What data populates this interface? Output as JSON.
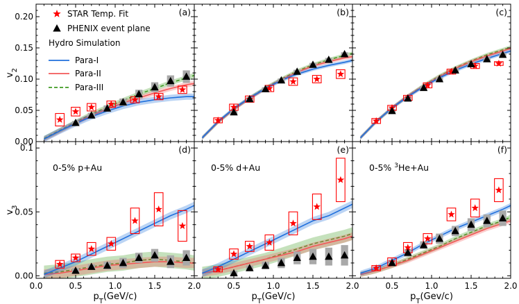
{
  "chart_data": {
    "type": "line",
    "layout": "2 rows x 3 columns, shared x axis",
    "x_axis": {
      "label": "p",
      "label_sub": "T",
      "label_unit": "(GeV/c)",
      "label_unit_last": "(Gev/c)",
      "range": [
        0.0,
        2.0
      ],
      "ticks": [
        0.0,
        0.5,
        1.0,
        1.5,
        2.0
      ],
      "tick_labels": [
        "0.0",
        "0.5",
        "1.0",
        "1.5",
        "2.0"
      ]
    },
    "rows": [
      {
        "name": "v2",
        "ylabel": "v",
        "ylabel_sub": "2",
        "ylim": [
          0.0,
          0.22
        ],
        "ticks": [
          0.0,
          0.05,
          0.1,
          0.15,
          0.2
        ],
        "tick_labels": [
          "0.00",
          "0.05",
          "0.10",
          "0.15",
          "0.20"
        ]
      },
      {
        "name": "v3",
        "ylabel": "v",
        "ylabel_sub": "3",
        "ylim": [
          -0.002,
          0.105
        ],
        "ticks": [
          0.0,
          0.05,
          0.1
        ],
        "tick_labels": [
          "0.00",
          "0.05",
          "0.1"
        ]
      }
    ],
    "legend": {
      "location": "top-left of panel (a)",
      "entries": [
        {
          "label": "STAR Temp. Fit",
          "marker": "star",
          "color": "#ff0000"
        },
        {
          "label": "PHENIX event plane",
          "marker": "triangle",
          "color": "#000000"
        }
      ],
      "group_title": "Hydro Simulation",
      "line_entries": [
        {
          "label": "Para-I",
          "color": "#1f6fdc",
          "style": "solid"
        },
        {
          "label": "Para-II",
          "color": "#f25858",
          "style": "solid"
        },
        {
          "label": "Para-III",
          "color": "#3f9a22",
          "style": "dashed"
        }
      ]
    },
    "colors": {
      "para1": "#1f6fdc",
      "para2": "#f25858",
      "para3": "#3f9a22",
      "star": "#ff0000",
      "phenix": "#000000",
      "syst": "#a9a9a9"
    },
    "panels": [
      {
        "id": "a",
        "tag": "(a)",
        "row": 0,
        "col": 0,
        "system_text": "",
        "star": {
          "x": [
            0.3,
            0.5,
            0.7,
            0.95,
            1.25,
            1.55,
            1.85
          ],
          "y": [
            0.035,
            0.048,
            0.055,
            0.06,
            0.067,
            0.072,
            0.083
          ],
          "box_half_height": [
            0.01,
            0.007,
            0.006,
            0.005,
            0.005,
            0.005,
            0.006
          ]
        },
        "phenix": {
          "x": [
            0.5,
            0.7,
            0.9,
            1.1,
            1.3,
            1.5,
            1.7,
            1.9
          ],
          "y": [
            0.03,
            0.042,
            0.053,
            0.063,
            0.076,
            0.087,
            0.097,
            0.104
          ],
          "syst_half_height": [
            0.003,
            0.004,
            0.005,
            0.006,
            0.007,
            0.008,
            0.009,
            0.01
          ]
        },
        "para1": {
          "x": [
            0.1,
            0.3,
            0.5,
            0.7,
            0.9,
            1.1,
            1.3,
            1.5,
            1.7,
            1.9,
            2.0
          ],
          "y": [
            0.004,
            0.017,
            0.029,
            0.04,
            0.049,
            0.057,
            0.063,
            0.067,
            0.07,
            0.072,
            0.072
          ],
          "band": 0.005
        },
        "para2": {
          "x": [
            0.1,
            0.3,
            0.5,
            0.7,
            0.9,
            1.1,
            1.3,
            1.5,
            1.7,
            1.9,
            2.0
          ],
          "y": [
            0.004,
            0.017,
            0.03,
            0.042,
            0.052,
            0.062,
            0.07,
            0.078,
            0.085,
            0.091,
            0.093
          ],
          "band": 0.004
        },
        "para3": {
          "x": [
            0.1,
            0.3,
            0.5,
            0.7,
            0.9,
            1.1,
            1.3,
            1.5,
            1.7,
            1.9,
            2.0
          ],
          "y": [
            0.005,
            0.018,
            0.031,
            0.044,
            0.055,
            0.066,
            0.076,
            0.085,
            0.094,
            0.102,
            0.106
          ],
          "band": 0.004
        }
      },
      {
        "id": "b",
        "tag": "(b)",
        "row": 0,
        "col": 1,
        "system_text": "",
        "star": {
          "x": [
            0.3,
            0.5,
            0.7,
            0.95,
            1.25,
            1.55,
            1.85
          ],
          "y": [
            0.034,
            0.055,
            0.068,
            0.085,
            0.096,
            0.1,
            0.108
          ],
          "box_half_height": [
            0.004,
            0.005,
            0.005,
            0.005,
            0.006,
            0.006,
            0.007
          ]
        },
        "phenix": {
          "x": [
            0.5,
            0.7,
            0.9,
            1.1,
            1.3,
            1.5,
            1.7,
            1.9
          ],
          "y": [
            0.047,
            0.068,
            0.084,
            0.098,
            0.112,
            0.123,
            0.131,
            0.14
          ],
          "syst_half_height": [
            0.003,
            0.003,
            0.003,
            0.003,
            0.003,
            0.003,
            0.003,
            0.003
          ]
        },
        "para1": {
          "x": [
            0.1,
            0.3,
            0.5,
            0.7,
            0.9,
            1.1,
            1.3,
            1.5,
            1.7,
            1.9,
            2.0
          ],
          "y": [
            0.006,
            0.032,
            0.053,
            0.07,
            0.085,
            0.098,
            0.108,
            0.116,
            0.122,
            0.127,
            0.13
          ],
          "band": 0.003
        },
        "para2": {
          "x": [
            0.1,
            0.3,
            0.5,
            0.7,
            0.9,
            1.1,
            1.3,
            1.5,
            1.7,
            1.9,
            2.0
          ],
          "y": [
            0.006,
            0.031,
            0.052,
            0.069,
            0.085,
            0.099,
            0.111,
            0.121,
            0.128,
            0.134,
            0.136
          ],
          "band": 0.003
        },
        "para3": {
          "x": [
            0.1,
            0.3,
            0.5,
            0.7,
            0.9,
            1.1,
            1.3,
            1.5,
            1.7,
            1.9,
            2.0
          ],
          "y": [
            0.006,
            0.031,
            0.052,
            0.07,
            0.086,
            0.1,
            0.113,
            0.123,
            0.131,
            0.138,
            0.141
          ],
          "band": 0.003
        }
      },
      {
        "id": "c",
        "tag": "(c)",
        "row": 0,
        "col": 2,
        "system_text": "",
        "star": {
          "x": [
            0.3,
            0.5,
            0.7,
            0.95,
            1.25,
            1.55,
            1.85
          ],
          "y": [
            0.033,
            0.054,
            0.07,
            0.09,
            0.112,
            0.121,
            0.125
          ],
          "box_half_height": [
            0.004,
            0.004,
            0.004,
            0.004,
            0.004,
            0.004,
            0.003
          ]
        },
        "phenix": {
          "x": [
            0.5,
            0.7,
            0.9,
            1.1,
            1.3,
            1.5,
            1.7,
            1.9
          ],
          "y": [
            0.049,
            0.069,
            0.086,
            0.1,
            0.114,
            0.124,
            0.132,
            0.139
          ],
          "syst_half_height": [
            0.003,
            0.003,
            0.003,
            0.003,
            0.003,
            0.003,
            0.003,
            0.003
          ]
        },
        "para1": {
          "x": [
            0.1,
            0.3,
            0.5,
            0.7,
            0.9,
            1.1,
            1.3,
            1.5,
            1.7,
            1.9,
            2.0
          ],
          "y": [
            0.006,
            0.032,
            0.054,
            0.072,
            0.088,
            0.102,
            0.114,
            0.124,
            0.133,
            0.141,
            0.145
          ],
          "band": 0.003
        },
        "para2": {
          "x": [
            0.1,
            0.3,
            0.5,
            0.7,
            0.9,
            1.1,
            1.3,
            1.5,
            1.7,
            1.9,
            2.0
          ],
          "y": [
            0.006,
            0.032,
            0.054,
            0.073,
            0.089,
            0.104,
            0.117,
            0.128,
            0.137,
            0.145,
            0.149
          ],
          "band": 0.003
        },
        "para3": {
          "x": [
            0.1,
            0.3,
            0.5,
            0.7,
            0.9,
            1.1,
            1.3,
            1.5,
            1.7,
            1.9,
            2.0
          ],
          "y": [
            0.006,
            0.032,
            0.054,
            0.073,
            0.09,
            0.105,
            0.118,
            0.129,
            0.139,
            0.147,
            0.151
          ],
          "band": 0.003
        }
      },
      {
        "id": "d",
        "tag": "(d)",
        "row": 1,
        "col": 0,
        "system_text": "0-5% p+Au",
        "star": {
          "x": [
            0.3,
            0.5,
            0.7,
            0.95,
            1.25,
            1.55,
            1.85
          ],
          "y": [
            0.009,
            0.014,
            0.021,
            0.025,
            0.043,
            0.052,
            0.039
          ],
          "box_half_height": [
            0.003,
            0.003,
            0.005,
            0.005,
            0.01,
            0.013,
            0.012
          ]
        },
        "phenix": {
          "x": [
            0.5,
            0.7,
            0.9,
            1.1,
            1.3,
            1.5,
            1.7,
            1.9
          ],
          "y": [
            0.004,
            0.007,
            0.008,
            0.01,
            0.014,
            0.016,
            0.011,
            0.014
          ],
          "syst_half_height": [
            0.002,
            0.002,
            0.003,
            0.004,
            0.004,
            0.005,
            0.005,
            0.006
          ]
        },
        "para1": {
          "x": [
            0.1,
            0.3,
            0.5,
            0.7,
            0.9,
            1.1,
            1.3,
            1.5,
            1.7,
            1.9,
            2.0
          ],
          "y": [
            0.001,
            0.006,
            0.011,
            0.017,
            0.023,
            0.029,
            0.035,
            0.041,
            0.047,
            0.052,
            0.055
          ],
          "band": 0.003
        },
        "para2": {
          "x": [
            0.1,
            0.3,
            0.5,
            0.7,
            0.9,
            1.1,
            1.3,
            1.5,
            1.7,
            1.9,
            2.0
          ],
          "y": [
            0.001,
            0.002,
            0.004,
            0.006,
            0.008,
            0.009,
            0.01,
            0.011,
            0.011,
            0.01,
            0.01
          ],
          "band": 0.004
        },
        "para3": {
          "x": [
            0.1,
            0.3,
            0.5,
            0.7,
            0.9,
            1.1,
            1.3,
            1.5,
            1.7,
            1.9,
            2.0
          ],
          "y": [
            0.002,
            0.003,
            0.005,
            0.007,
            0.009,
            0.01,
            0.012,
            0.013,
            0.012,
            0.011,
            0.01
          ],
          "band": 0.006
        }
      },
      {
        "id": "e",
        "tag": "(e)",
        "row": 1,
        "col": 1,
        "system_text": "0-5% d+Au",
        "star": {
          "x": [
            0.3,
            0.5,
            0.7,
            0.95,
            1.25,
            1.55,
            1.85
          ],
          "y": [
            0.005,
            0.017,
            0.023,
            0.026,
            0.041,
            0.054,
            0.075
          ],
          "box_half_height": [
            0.002,
            0.004,
            0.004,
            0.006,
            0.009,
            0.01,
            0.017
          ]
        },
        "phenix": {
          "x": [
            0.5,
            0.7,
            0.9,
            1.1,
            1.3,
            1.5,
            1.7,
            1.9
          ],
          "y": [
            0.002,
            0.006,
            0.008,
            0.01,
            0.014,
            0.015,
            0.015,
            0.016
          ],
          "syst_half_height": [
            0.002,
            0.002,
            0.003,
            0.004,
            0.005,
            0.006,
            0.007,
            0.008
          ]
        },
        "para1": {
          "x": [
            0.1,
            0.3,
            0.5,
            0.7,
            0.9,
            1.1,
            1.3,
            1.5,
            1.7,
            1.9,
            2.0
          ],
          "y": [
            0.002,
            0.007,
            0.013,
            0.019,
            0.025,
            0.031,
            0.037,
            0.043,
            0.047,
            0.053,
            0.056
          ],
          "band": 0.003
        },
        "para2": {
          "x": [
            0.1,
            0.3,
            0.5,
            0.7,
            0.9,
            1.1,
            1.3,
            1.5,
            1.7,
            1.9,
            2.0
          ],
          "y": [
            0.002,
            0.004,
            0.007,
            0.01,
            0.013,
            0.016,
            0.019,
            0.023,
            0.026,
            0.029,
            0.031
          ],
          "band": 0.003
        },
        "para3": {
          "x": [
            0.1,
            0.3,
            0.5,
            0.7,
            0.9,
            1.1,
            1.3,
            1.5,
            1.7,
            1.9,
            2.0
          ],
          "y": [
            0.002,
            0.004,
            0.007,
            0.01,
            0.013,
            0.017,
            0.021,
            0.025,
            0.028,
            0.031,
            0.033
          ],
          "band": 0.005
        }
      },
      {
        "id": "f",
        "tag": "(f)",
        "row": 1,
        "col": 2,
        "system_text_prefix": "0-5% ",
        "system_text_sup": "3",
        "system_text_suffix": "He+Au",
        "star": {
          "x": [
            0.3,
            0.5,
            0.7,
            0.95,
            1.25,
            1.55,
            1.85
          ],
          "y": [
            0.006,
            0.011,
            0.022,
            0.029,
            0.048,
            0.053,
            0.067
          ],
          "box_half_height": [
            0.002,
            0.003,
            0.004,
            0.004,
            0.005,
            0.007,
            0.009
          ]
        },
        "phenix": {
          "x": [
            0.5,
            0.7,
            0.9,
            1.1,
            1.3,
            1.5,
            1.7,
            1.9
          ],
          "y": [
            0.01,
            0.018,
            0.024,
            0.029,
            0.035,
            0.04,
            0.043,
            0.045
          ],
          "syst_half_height": [
            0.002,
            0.003,
            0.003,
            0.004,
            0.004,
            0.005,
            0.005,
            0.006
          ]
        },
        "para1": {
          "x": [
            0.1,
            0.3,
            0.5,
            0.7,
            0.9,
            1.1,
            1.3,
            1.5,
            1.7,
            1.9,
            2.0
          ],
          "y": [
            0.002,
            0.006,
            0.012,
            0.018,
            0.025,
            0.031,
            0.037,
            0.042,
            0.047,
            0.052,
            0.055
          ],
          "band": 0.002
        },
        "para2": {
          "x": [
            0.1,
            0.3,
            0.5,
            0.7,
            0.9,
            1.1,
            1.3,
            1.5,
            1.7,
            1.9,
            2.0
          ],
          "y": [
            0.001,
            0.004,
            0.008,
            0.012,
            0.017,
            0.022,
            0.027,
            0.032,
            0.037,
            0.041,
            0.043
          ],
          "band": 0.002
        },
        "para3": {
          "x": [
            0.1,
            0.3,
            0.5,
            0.7,
            0.9,
            1.1,
            1.3,
            1.5,
            1.7,
            1.9,
            2.0
          ],
          "y": [
            0.001,
            0.004,
            0.008,
            0.013,
            0.018,
            0.023,
            0.029,
            0.034,
            0.039,
            0.043,
            0.046
          ],
          "band": 0.002
        }
      }
    ]
  }
}
